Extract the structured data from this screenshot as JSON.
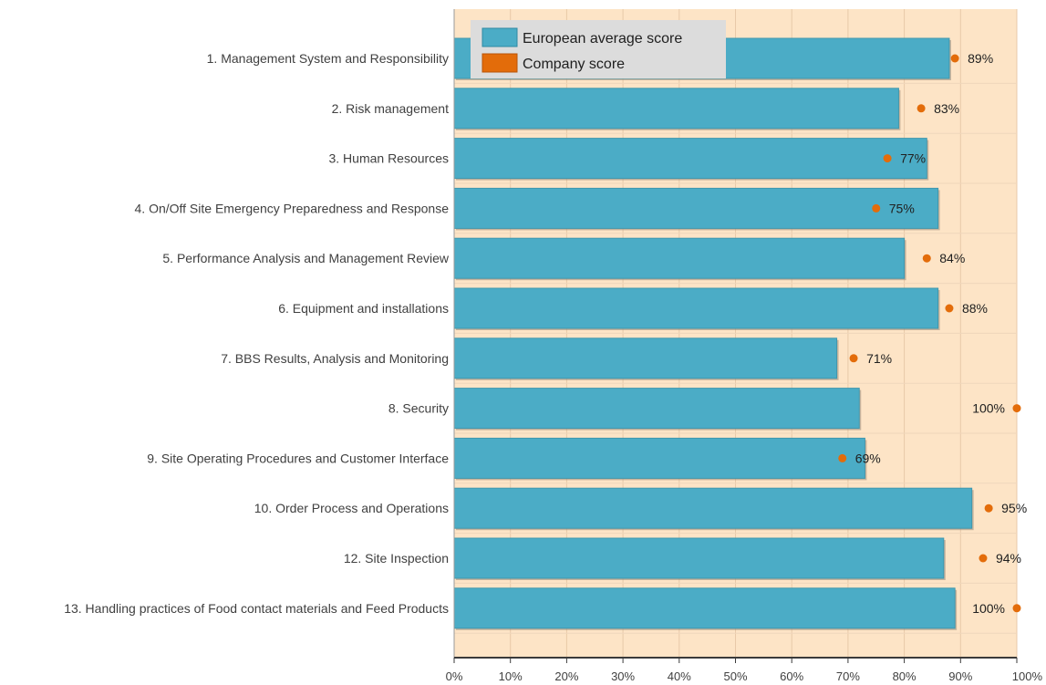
{
  "chart_data": {
    "type": "bar",
    "orientation": "horizontal",
    "categories": [
      "1. Management System and Responsibility",
      "2. Risk management",
      "3. Human Resources",
      "4. On/Off Site Emergency Preparedness and Response",
      "5. Performance Analysis and Management Review",
      "6. Equipment and installations",
      "7. BBS Results, Analysis and Monitoring",
      "8. Security",
      "9. Site Operating Procedures and Customer Interface",
      "10. Order Process and Operations",
      "12. Site Inspection",
      "13. Handling practices of Food contact materials and Feed Products"
    ],
    "series": [
      {
        "name": "European average score",
        "type": "bar",
        "color": "#4bacc6",
        "values": [
          88,
          79,
          84,
          86,
          80,
          86,
          68,
          72,
          73,
          92,
          87,
          89
        ]
      },
      {
        "name": "Company score",
        "type": "point",
        "color": "#e36c0a",
        "values": [
          89,
          83,
          77,
          75,
          84,
          88,
          71,
          100,
          69,
          95,
          94,
          100
        ]
      }
    ],
    "value_labels": [
      "89%",
      "83%",
      "77%",
      "75%",
      "84%",
      "88%",
      "71%",
      "100%",
      "69%",
      "95%",
      "94%",
      "100%"
    ],
    "x_ticks": [
      "0%",
      "10%",
      "20%",
      "30%",
      "40%",
      "50%",
      "60%",
      "70%",
      "80%",
      "90%",
      "100%"
    ],
    "xlim": [
      0,
      100
    ],
    "grid": true,
    "legend_position": "top-left",
    "plot_background": "#fde4c6"
  }
}
